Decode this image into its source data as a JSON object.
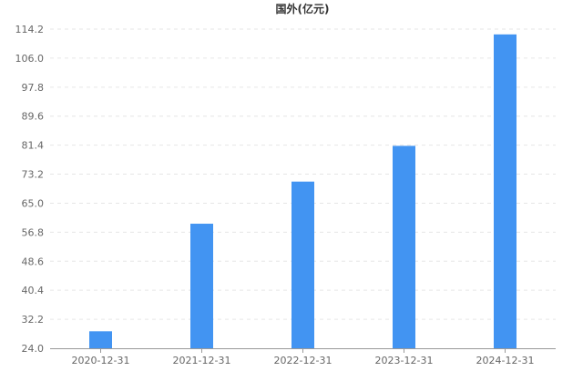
{
  "chart_data": {
    "type": "bar",
    "title": "国外(亿元)",
    "categories": [
      "2020-12-31",
      "2021-12-31",
      "2022-12-31",
      "2023-12-31",
      "2024-12-31"
    ],
    "values": [
      28.8,
      59.2,
      71.1,
      81.2,
      112.7
    ],
    "ylim": [
      24.0,
      114.2
    ],
    "yticks": [
      "24.0",
      "32.2",
      "40.4",
      "48.6",
      "56.8",
      "65.0",
      "73.2",
      "81.4",
      "89.6",
      "97.8",
      "106.0",
      "114.2"
    ],
    "grid": true,
    "bar_color": "#4294f2"
  }
}
